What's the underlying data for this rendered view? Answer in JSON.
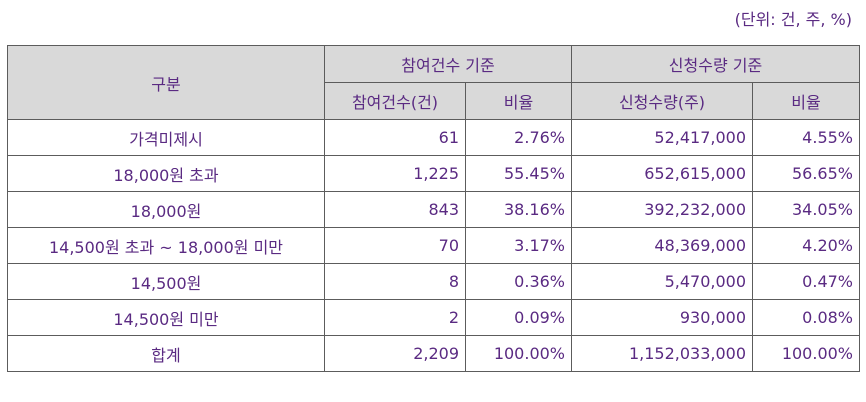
{
  "unit_note": "(단위: 건, 주, %)",
  "header": {
    "category": "구분",
    "group_participation": "참여건수 기준",
    "group_subscription": "신청수량 기준",
    "participation_count": "참여건수(건)",
    "participation_ratio": "비율",
    "subscription_qty": "신청수량(주)",
    "subscription_ratio": "비율"
  },
  "rows": [
    {
      "category": "가격미제시",
      "participation_count": "61",
      "participation_ratio": "2.76%",
      "subscription_qty": "52,417,000",
      "subscription_ratio": "4.55%"
    },
    {
      "category": "18,000원 초과",
      "participation_count": "1,225",
      "participation_ratio": "55.45%",
      "subscription_qty": "652,615,000",
      "subscription_ratio": "56.65%"
    },
    {
      "category": "18,000원",
      "participation_count": "843",
      "participation_ratio": "38.16%",
      "subscription_qty": "392,232,000",
      "subscription_ratio": "34.05%"
    },
    {
      "category": "14,500원 초과 ~ 18,000원 미만",
      "participation_count": "70",
      "participation_ratio": "3.17%",
      "subscription_qty": "48,369,000",
      "subscription_ratio": "4.20%"
    },
    {
      "category": "14,500원",
      "participation_count": "8",
      "participation_ratio": "0.36%",
      "subscription_qty": "5,470,000",
      "subscription_ratio": "0.47%"
    },
    {
      "category": "14,500원 미만",
      "participation_count": "2",
      "participation_ratio": "0.09%",
      "subscription_qty": "930,000",
      "subscription_ratio": "0.08%"
    },
    {
      "category": "합계",
      "participation_count": "2,209",
      "participation_ratio": "100.00%",
      "subscription_qty": "1,152,033,000",
      "subscription_ratio": "100.00%"
    }
  ],
  "colors": {
    "text": "#5a2a82",
    "header_bg": "#d9d9d9",
    "border": "#5c5c5c"
  }
}
